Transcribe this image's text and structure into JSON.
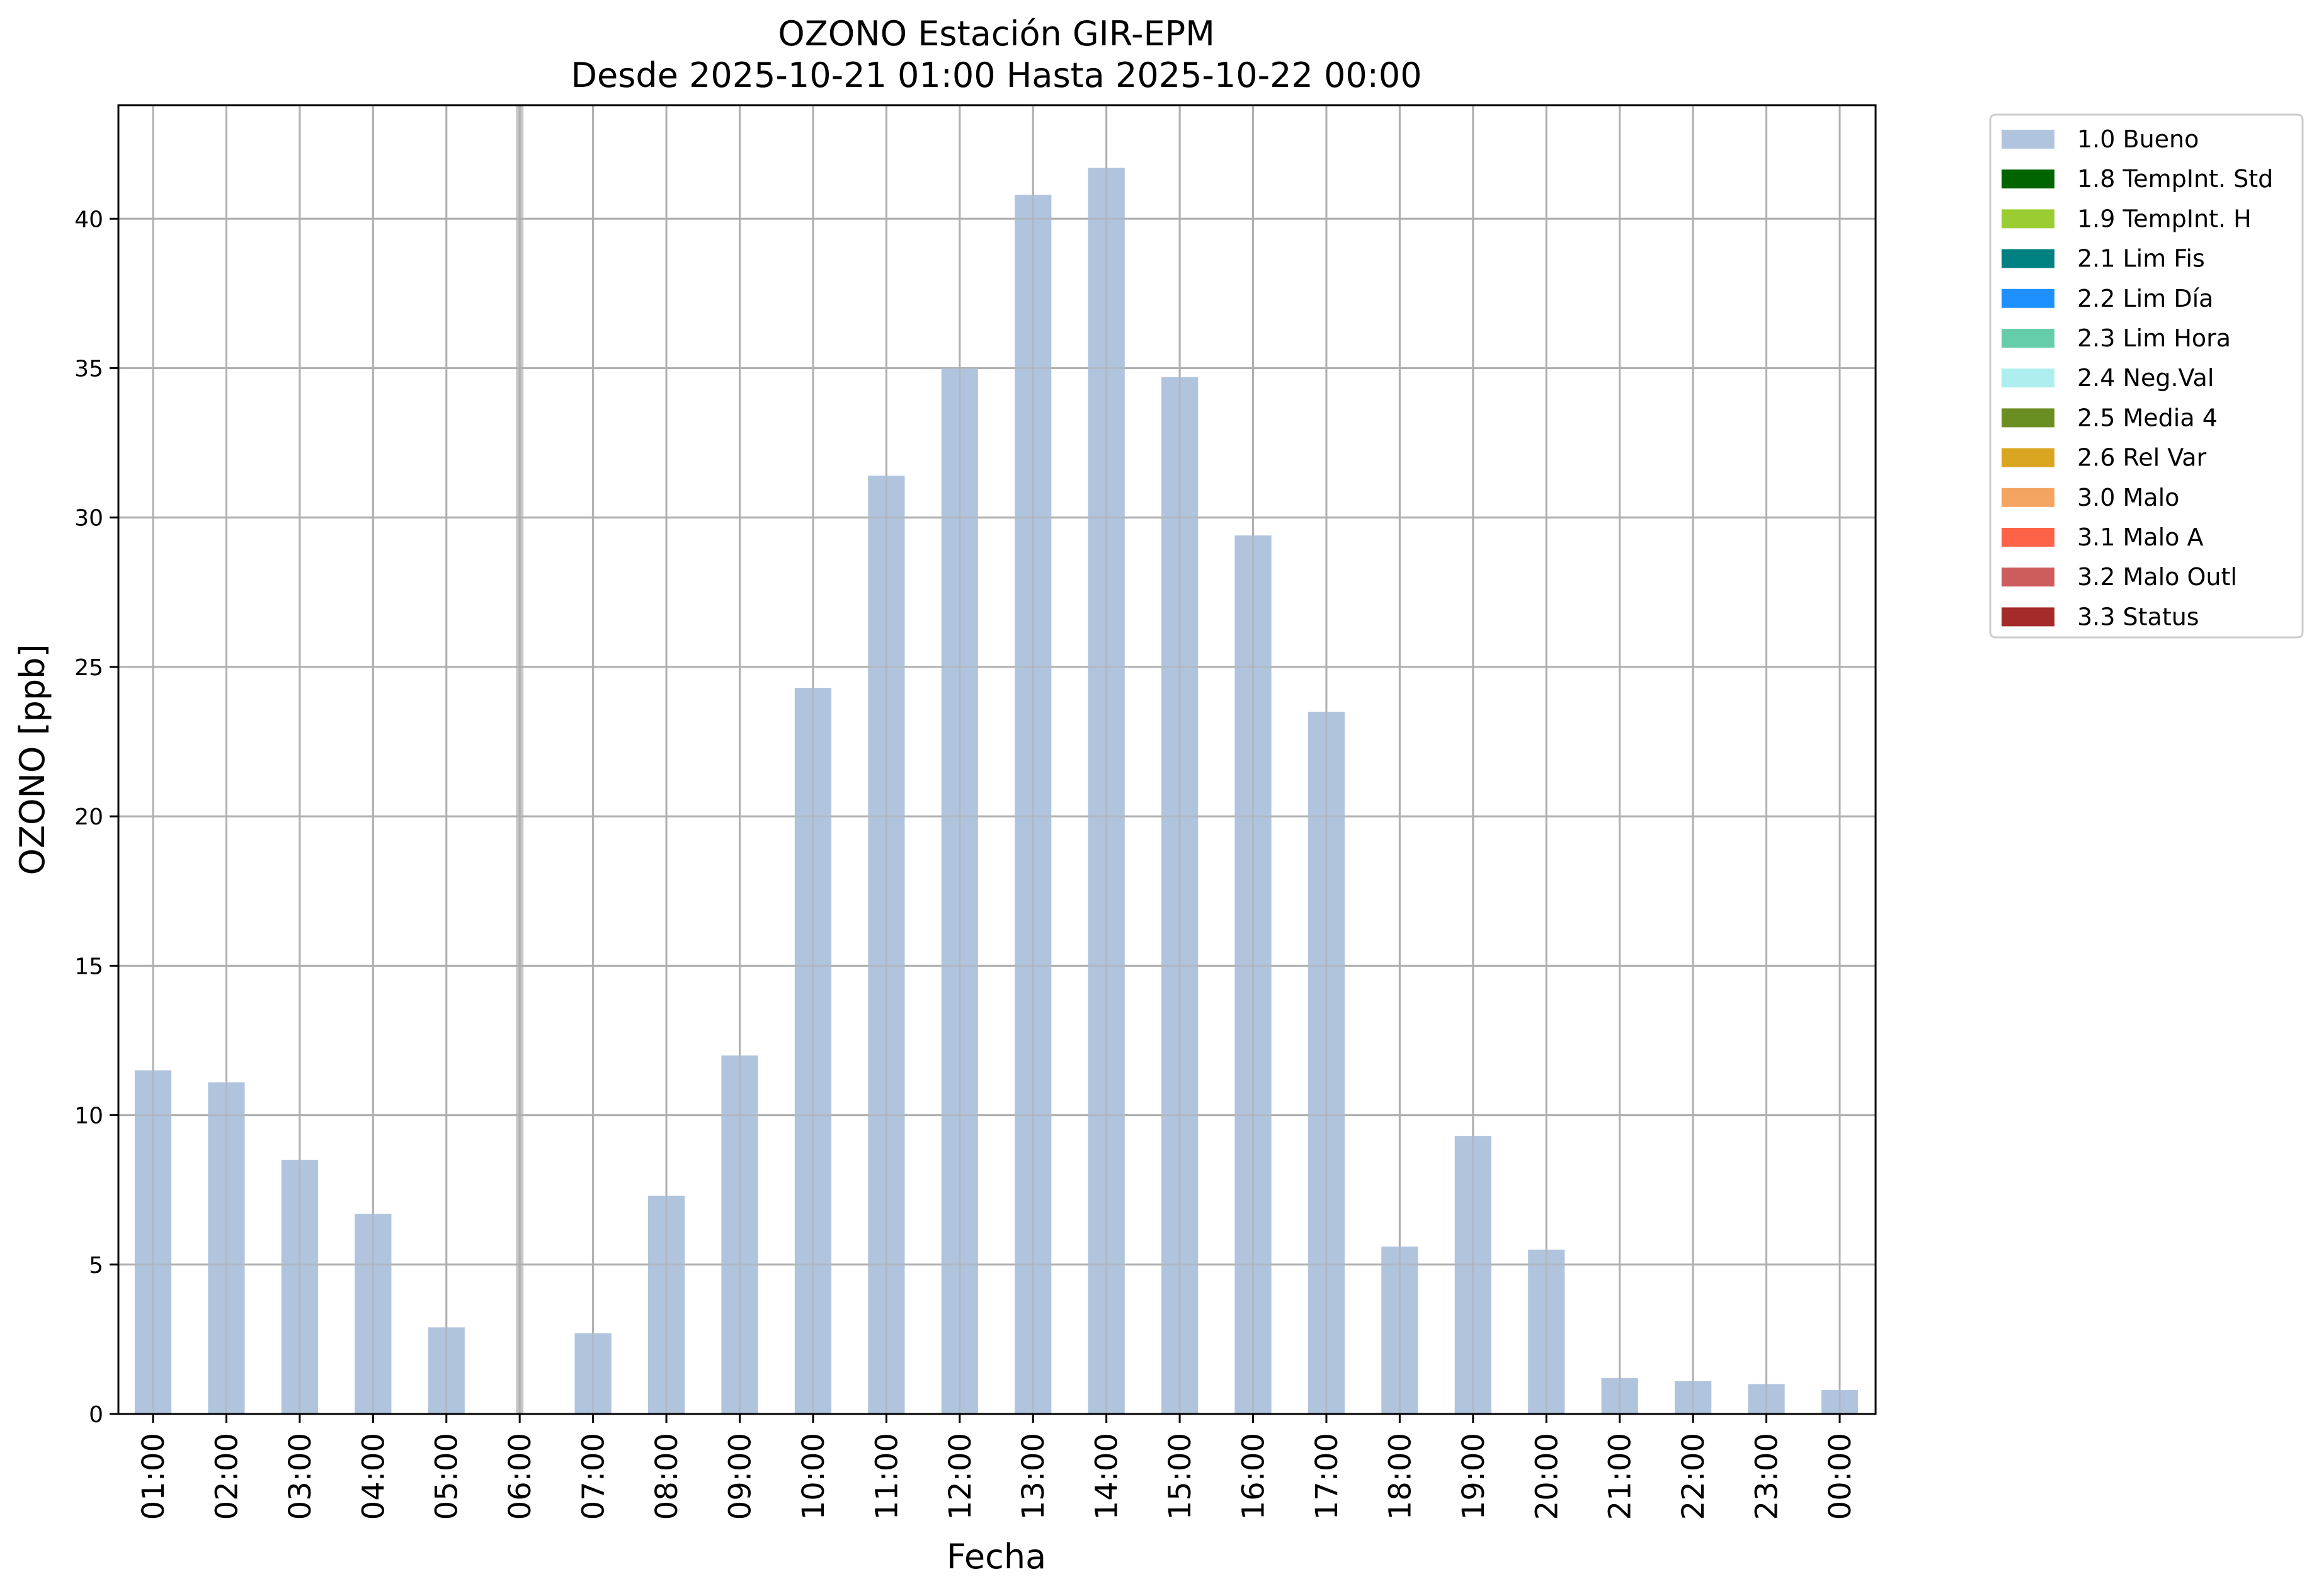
{
  "chart_data": {
    "type": "bar",
    "title": "OZONO Estación GIR-EPM",
    "subtitle": "Desde 2025-10-21 01:00 Hasta 2025-10-22 00:00",
    "xlabel": "Fecha",
    "ylabel": "OZONO [ppb]",
    "ylim": [
      0,
      43.8
    ],
    "yticks": [
      0,
      5,
      10,
      15,
      20,
      25,
      30,
      35,
      40
    ],
    "grid": true,
    "legend_position": "outside-top-right",
    "categories": [
      "01:00",
      "02:00",
      "03:00",
      "04:00",
      "05:00",
      "06:00",
      "07:00",
      "08:00",
      "09:00",
      "10:00",
      "11:00",
      "12:00",
      "13:00",
      "14:00",
      "15:00",
      "16:00",
      "17:00",
      "18:00",
      "19:00",
      "20:00",
      "21:00",
      "22:00",
      "23:00",
      "00:00"
    ],
    "series": [
      {
        "name": "1.0 Bueno",
        "color": "#b0c4de",
        "values": [
          11.5,
          11.1,
          8.5,
          6.7,
          2.9,
          null,
          2.7,
          7.3,
          12.0,
          24.3,
          31.4,
          35.0,
          40.8,
          41.7,
          34.7,
          29.4,
          23.5,
          5.6,
          9.3,
          5.5,
          1.2,
          1.1,
          1.0,
          0.8
        ]
      }
    ],
    "highlighted_category": "06:00",
    "legend": [
      {
        "label": "1.0 Bueno",
        "color": "#b0c4de"
      },
      {
        "label": "1.8 TempInt. Std",
        "color": "#006400"
      },
      {
        "label": "1.9 TempInt. H",
        "color": "#9acd32"
      },
      {
        "label": "2.1 Lim Fis",
        "color": "#008080"
      },
      {
        "label": "2.2 Lim Día",
        "color": "#1e90ff"
      },
      {
        "label": "2.3 Lim Hora",
        "color": "#66cdaa"
      },
      {
        "label": "2.4 Neg.Val",
        "color": "#afeeee"
      },
      {
        "label": "2.5 Media 4",
        "color": "#6b8e23"
      },
      {
        "label": "2.6 Rel Var",
        "color": "#daa520"
      },
      {
        "label": "3.0 Malo",
        "color": "#f4a460"
      },
      {
        "label": "3.1 Malo A",
        "color": "#ff6347"
      },
      {
        "label": "3.2 Malo Outl",
        "color": "#cd5c5c"
      },
      {
        "label": "3.3 Status",
        "color": "#a52a2a"
      }
    ]
  }
}
